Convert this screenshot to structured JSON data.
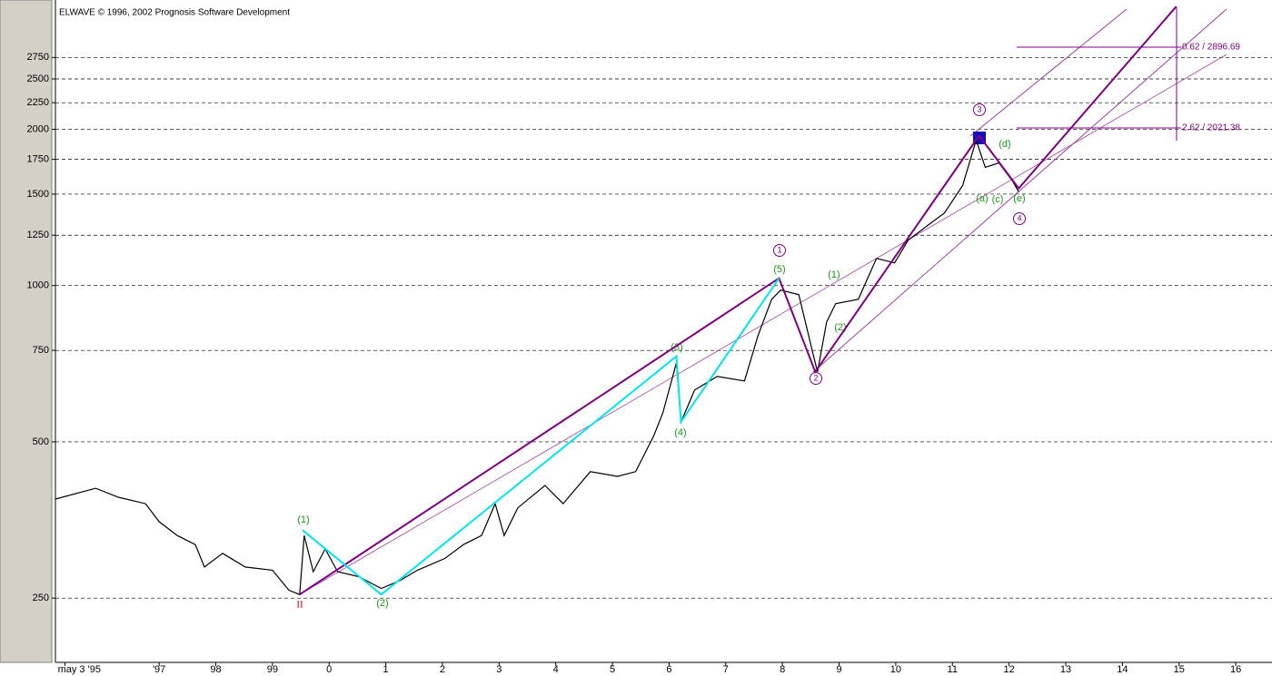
{
  "chart_data": {
    "type": "line",
    "title": "ELWAVE © 1996, 2002 Prognosis Software Development",
    "log_scale": true,
    "grid": true,
    "color": "#000000",
    "x": [
      1995.17,
      1995.88,
      1996.28,
      1996.76,
      1997.0,
      1997.32,
      1997.64,
      1997.8,
      1998.12,
      1998.52,
      1999.0,
      1999.29,
      1999.48,
      1999.56,
      1999.72,
      1999.93,
      2000.15,
      2000.52,
      2000.92,
      2001.24,
      2001.56,
      2002.04,
      2002.37,
      2002.69,
      2002.93,
      2003.09,
      2003.33,
      2003.81,
      2004.13,
      2004.61,
      2005.09,
      2005.41,
      2005.73,
      2005.89,
      2006.13,
      2006.21,
      2006.45,
      2006.85,
      2007.33,
      2007.57,
      2007.81,
      2007.97,
      2008.29,
      2008.54,
      2008.62,
      2008.78,
      2008.94,
      2009.34,
      2009.66,
      2009.98,
      2010.22,
      2010.54,
      2010.86,
      2011.18,
      2011.42,
      2011.58,
      2011.82,
      2012.06,
      2012.17
    ],
    "values": [
      388,
      407,
      391,
      380,
      351,
      330,
      317,
      287,
      305,
      287,
      283,
      259,
      254,
      330,
      281,
      311,
      281,
      275,
      261,
      270,
      283,
      298,
      317,
      330,
      380,
      330,
      373,
      412,
      380,
      438,
      429,
      438,
      514,
      569,
      710,
      546,
      629,
      668,
      655,
      801,
      941,
      980,
      960,
      739,
      682,
      851,
      923,
      941,
      1128,
      1106,
      1223,
      1300,
      1380,
      1558,
      1906,
      1689,
      1723,
      1590,
      1515
    ],
    "overlays": [
      {
        "color": "#800080",
        "x": [
          1999.48,
          2007.94,
          2008.58,
          2011.47,
          2012.17,
          2014.95
        ],
        "values": [
          254,
          1033,
          682,
          1944,
          1539,
          3446
        ]
      },
      {
        "color": "#00e5ee",
        "x": [
          1999.53,
          2000.92,
          2006.13,
          2006.21,
          2007.94
        ],
        "values": [
          338,
          254,
          731,
          546,
          1033
        ]
      }
    ],
    "xlim": [
      1995.17,
      2016.64
    ],
    "ylim": [
      188,
      3548
    ],
    "xticks": [
      {
        "value": 1995.34,
        "label": "may 3 '95"
      },
      {
        "value": 1997,
        "label": "'97"
      },
      {
        "value": 1998,
        "label": "98"
      },
      {
        "value": 1999,
        "label": "99"
      },
      {
        "value": 2000,
        "label": "0"
      },
      {
        "value": 2001,
        "label": "1"
      },
      {
        "value": 2002,
        "label": "2"
      },
      {
        "value": 2003,
        "label": "3"
      },
      {
        "value": 2004,
        "label": "4"
      },
      {
        "value": 2005,
        "label": "5"
      },
      {
        "value": 2006,
        "label": "6"
      },
      {
        "value": 2007,
        "label": "7"
      },
      {
        "value": 2008,
        "label": "8"
      },
      {
        "value": 2009,
        "label": "9"
      },
      {
        "value": 2010,
        "label": "10"
      },
      {
        "value": 2011,
        "label": "11"
      },
      {
        "value": 2012,
        "label": "12"
      },
      {
        "value": 2013,
        "label": "13"
      },
      {
        "value": 2014,
        "label": "14"
      },
      {
        "value": 2015,
        "label": "15"
      },
      {
        "value": 2016,
        "label": "16"
      }
    ],
    "yticks": [
      250,
      500,
      750,
      1000,
      1250,
      1500,
      1750,
      2000,
      2250,
      2500,
      2750
    ],
    "annotations": [
      "0.62 / 2896.69",
      "2.62 / 2021.38",
      "(1)",
      "II",
      "(2)",
      "(3)",
      "(4)",
      "(5)",
      "1",
      "2",
      "(1)",
      "(2)",
      "3",
      "(d)",
      "(a)",
      "(c)",
      "(e)",
      "4"
    ]
  }
}
